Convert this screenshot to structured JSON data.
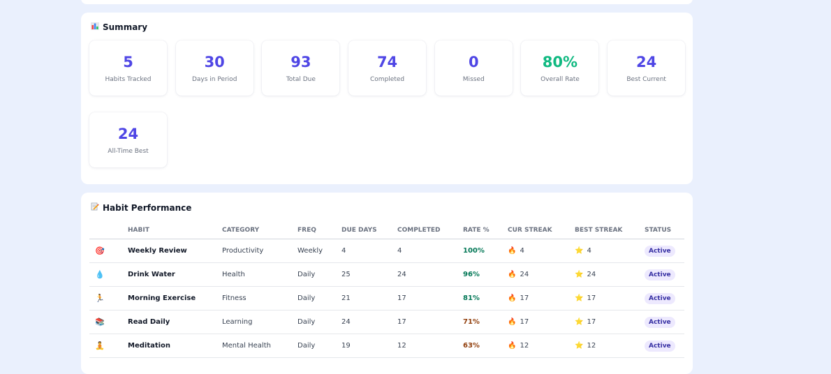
{
  "summary": {
    "title": "Summary",
    "icon": "bar-chart-icon",
    "stats": [
      {
        "value": "5",
        "label": "Habits Tracked"
      },
      {
        "value": "30",
        "label": "Days in Period"
      },
      {
        "value": "93",
        "label": "Total Due"
      },
      {
        "value": "74",
        "label": "Completed"
      },
      {
        "value": "0",
        "label": "Missed"
      },
      {
        "value": "80%",
        "label": "Overall Rate",
        "color": "#10b981"
      },
      {
        "value": "24",
        "label": "Best Current"
      },
      {
        "value": "24",
        "label": "All-Time Best"
      }
    ],
    "accent_color": "#4f46e5"
  },
  "performance": {
    "title": "Habit Performance",
    "icon": "memo-icon",
    "columns": [
      "Habit",
      "Category",
      "Freq",
      "Due Days",
      "Completed",
      "Rate %",
      "Cur Streak",
      "Best Streak",
      "Status"
    ],
    "rows": [
      {
        "icon": "target-icon",
        "glyph": "🎯",
        "habit": "Weekly Review",
        "category": "Productivity",
        "freq": "Weekly",
        "due": "4",
        "completed": "4",
        "rate": "100%",
        "cur": "4",
        "best": "4",
        "status": "Active"
      },
      {
        "icon": "droplet-icon",
        "glyph": "💧",
        "habit": "Drink Water",
        "category": "Health",
        "freq": "Daily",
        "due": "25",
        "completed": "24",
        "rate": "96%",
        "cur": "24",
        "best": "24",
        "status": "Active"
      },
      {
        "icon": "runner-icon",
        "glyph": "🏃",
        "habit": "Morning Exercise",
        "category": "Fitness",
        "freq": "Daily",
        "due": "21",
        "completed": "17",
        "rate": "81%",
        "cur": "17",
        "best": "17",
        "status": "Active"
      },
      {
        "icon": "books-icon",
        "glyph": "📚",
        "habit": "Read Daily",
        "category": "Learning",
        "freq": "Daily",
        "due": "24",
        "completed": "17",
        "rate": "71%",
        "cur": "17",
        "best": "17",
        "status": "Active"
      },
      {
        "icon": "meditation-icon",
        "glyph": "🧘",
        "habit": "Meditation",
        "category": "Mental Health",
        "freq": "Daily",
        "due": "19",
        "completed": "12",
        "rate": "63%",
        "cur": "12",
        "best": "12",
        "status": "Active"
      }
    ]
  }
}
